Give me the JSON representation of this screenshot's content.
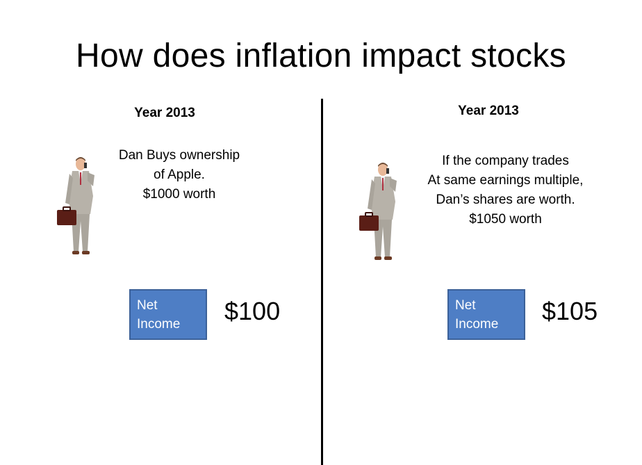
{
  "slide": {
    "title": "How does inflation impact stocks"
  },
  "left_panel": {
    "year": "Year 2013",
    "description_lines": [
      "Dan Buys ownership",
      "of Apple.",
      "$1000 worth"
    ],
    "net_income_label_lines": [
      "Net",
      "Income"
    ],
    "net_income_value": "$100"
  },
  "right_panel": {
    "year": "Year 2013",
    "description_lines": [
      "If the company trades",
      "At same earnings multiple,",
      "Dan’s shares are worth.",
      "$1050 worth"
    ],
    "net_income_label_lines": [
      "Net",
      "Income"
    ],
    "net_income_value": "$105"
  },
  "colors": {
    "box_fill": "#4e7ec5",
    "box_border": "#3c6199",
    "suit": "#b7b2a9",
    "briefcase": "#5a1e16"
  },
  "icons": {
    "businessman": "businessman-with-briefcase-image"
  }
}
